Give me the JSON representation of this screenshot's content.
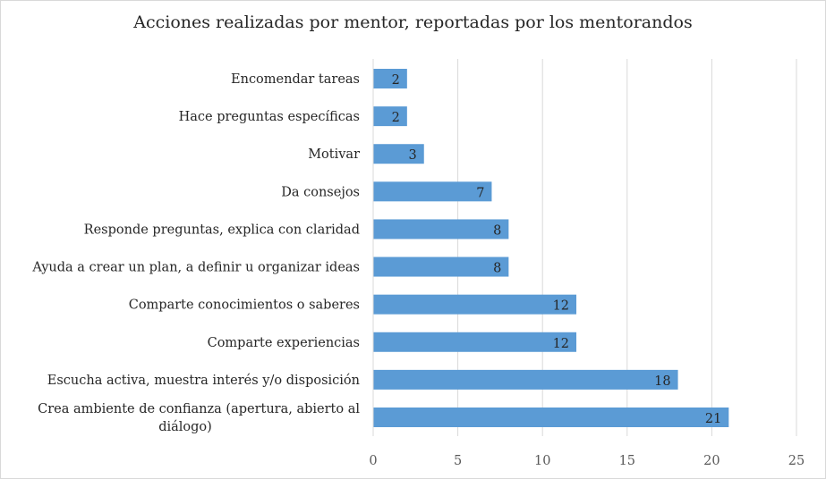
{
  "chart_data": {
    "type": "bar",
    "orientation": "horizontal",
    "title": "Acciones realizadas por mentor, reportadas por los mentorandos",
    "xlabel": "",
    "ylabel": "",
    "xlim": [
      0,
      25
    ],
    "x_ticks": [
      "0",
      "5",
      "10",
      "15",
      "20",
      "25"
    ],
    "grid": true,
    "legend": "none",
    "bar_color": "#5b9bd5",
    "categories": [
      [
        "Encomendar tareas"
      ],
      [
        "Hace preguntas específicas"
      ],
      [
        "Motivar"
      ],
      [
        "Da consejos"
      ],
      [
        "Responde preguntas, explica con claridad"
      ],
      [
        "Ayuda a crear un plan, a definir u organizar ideas"
      ],
      [
        "Comparte conocimientos o saberes"
      ],
      [
        "Comparte experiencias"
      ],
      [
        "Escucha activa, muestra interés y/o disposición"
      ],
      [
        "Crea ambiente de confianza (apertura, abierto al",
        "diálogo)"
      ]
    ],
    "values": [
      2,
      2,
      3,
      7,
      8,
      8,
      12,
      12,
      18,
      21
    ],
    "data_labels": [
      "2",
      "2",
      "3",
      "7",
      "8",
      "8",
      "12",
      "12",
      "18",
      "21"
    ]
  }
}
